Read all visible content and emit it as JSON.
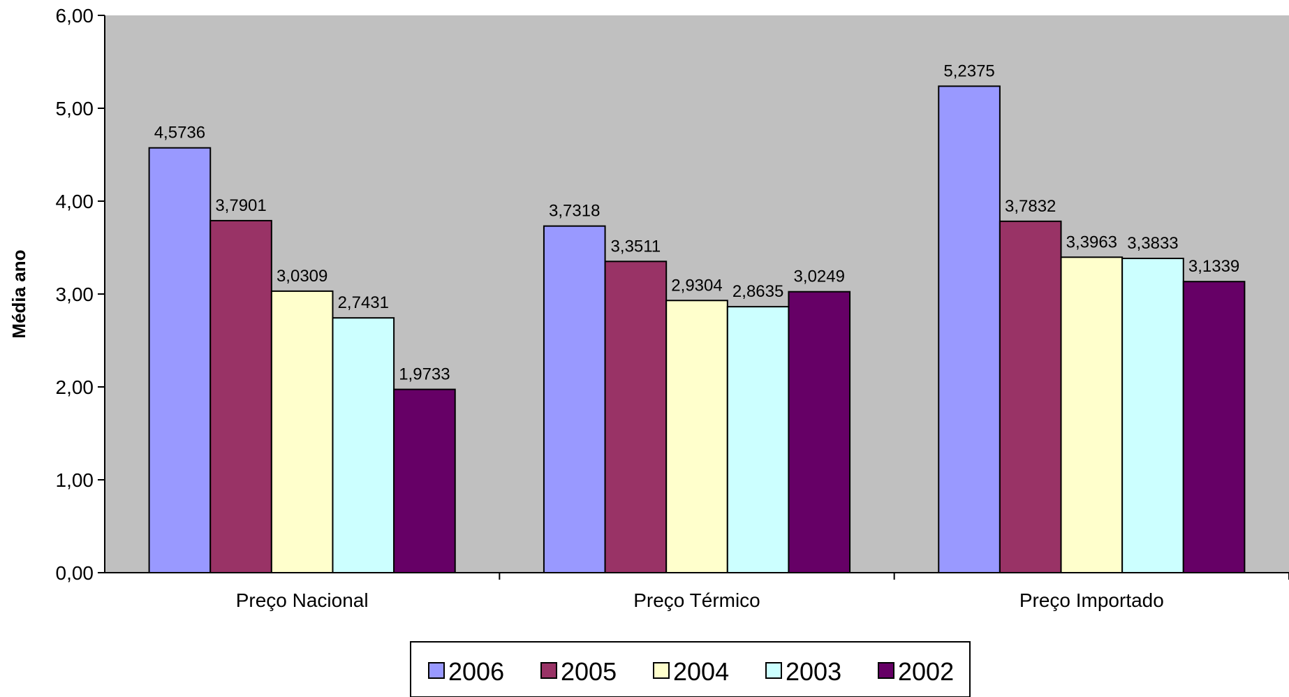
{
  "chart_data": {
    "type": "bar",
    "title": "",
    "xlabel": "",
    "ylabel": "Média ano",
    "ylim": [
      0,
      6
    ],
    "yticks": [
      "0,00",
      "1,00",
      "2,00",
      "3,00",
      "4,00",
      "5,00",
      "6,00"
    ],
    "categories": [
      "Preço Nacional",
      "Preço Térmico",
      "Preço Importado"
    ],
    "series": [
      {
        "name": "2006",
        "color": "#9999FF",
        "values": [
          4.5736,
          3.7318,
          5.2375
        ],
        "labels": [
          "4,5736",
          "3,7318",
          "5,2375"
        ]
      },
      {
        "name": "2005",
        "color": "#993366",
        "values": [
          3.7901,
          3.3511,
          3.7832
        ],
        "labels": [
          "3,7901",
          "3,3511",
          "3,7832"
        ]
      },
      {
        "name": "2004",
        "color": "#FFFFCC",
        "values": [
          3.0309,
          2.9304,
          3.3963
        ],
        "labels": [
          "3,0309",
          "2,9304",
          "3,3963"
        ]
      },
      {
        "name": "2003",
        "color": "#CCFFFF",
        "values": [
          2.7431,
          2.8635,
          3.3833
        ],
        "labels": [
          "2,7431",
          "2,8635",
          "3,3833"
        ]
      },
      {
        "name": "2002",
        "color": "#660066",
        "values": [
          1.9733,
          3.0249,
          3.1339
        ],
        "labels": [
          "1,9733",
          "3,0249",
          "3,1339"
        ]
      }
    ],
    "grid": false,
    "plot_background": "#C0C0C0",
    "legend_position": "bottom"
  }
}
